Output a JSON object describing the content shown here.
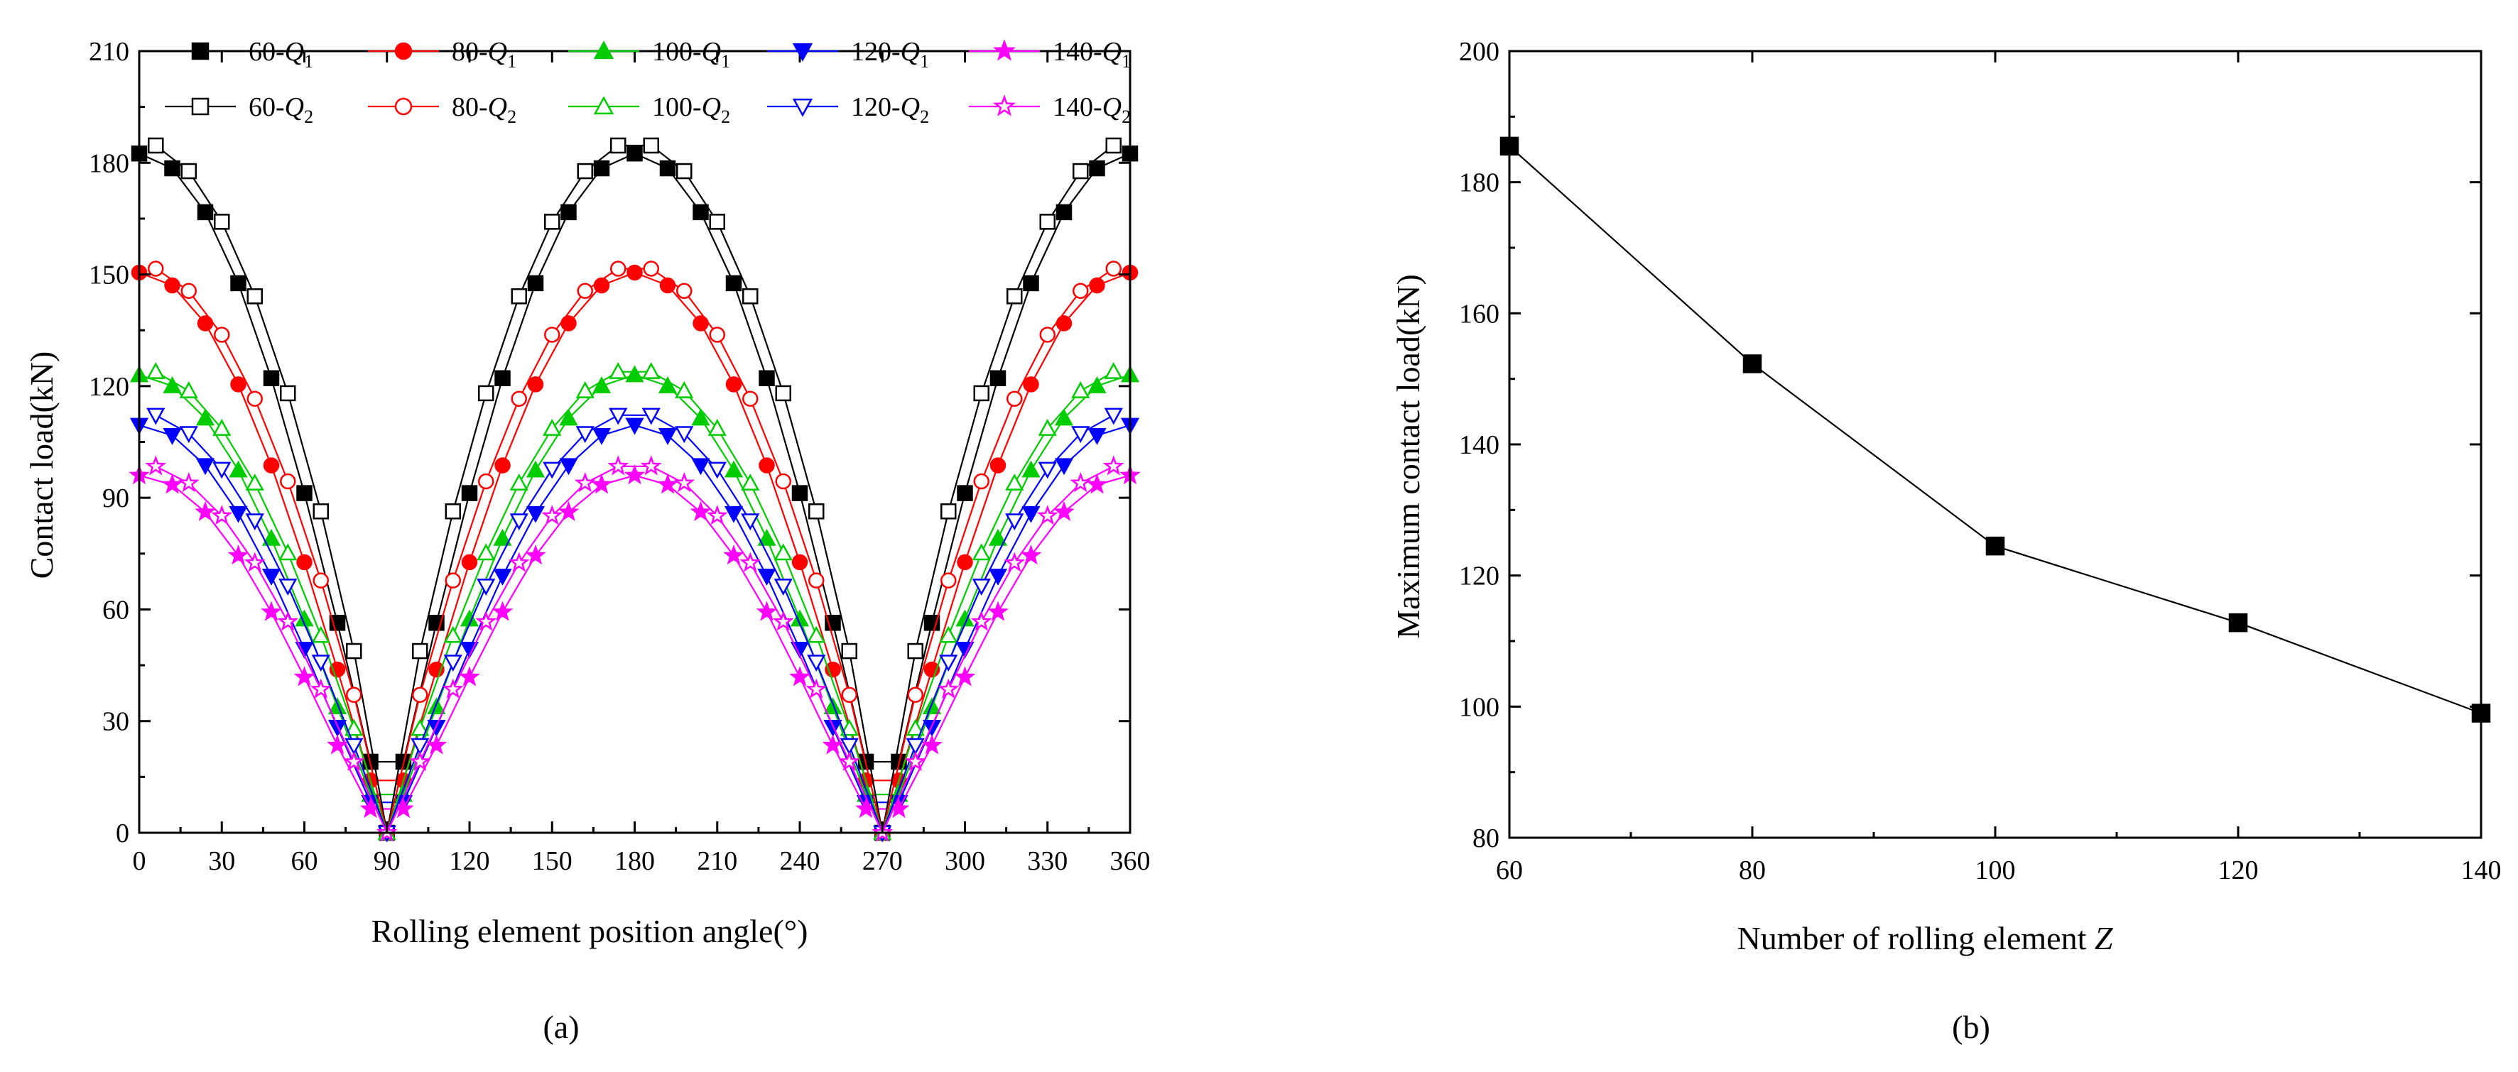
{
  "figure": {
    "panel_a_label": "(a)",
    "panel_b_label": "(b)"
  },
  "chart_data": [
    {
      "type": "line",
      "panel": "a",
      "xlabel": "Rolling element position angle(°)",
      "ylabel": "Contact load(kN)",
      "xlim": [
        0,
        360
      ],
      "ylim": [
        0,
        210
      ],
      "xticks": [
        "0",
        "30",
        "60",
        "90",
        "120",
        "150",
        "180",
        "210",
        "240",
        "270",
        "300",
        "330",
        "360"
      ],
      "yticks": [
        "0",
        "30",
        "60",
        "90",
        "120",
        "150",
        "180",
        "210"
      ],
      "grid": false,
      "legend_position": "top",
      "series": [
        {
          "name": "60-Q1",
          "label": {
            "pre": "60-",
            "var": "Q",
            "sub": "1"
          },
          "color": "#000000",
          "marker": "square",
          "filled": true,
          "peak": 182.5,
          "a": 1.0,
          "group": 1
        },
        {
          "name": "80-Q1",
          "label": {
            "pre": "80-",
            "var": "Q",
            "sub": "1"
          },
          "color": "#ff0000",
          "marker": "circle",
          "filled": true,
          "peak": 150.5,
          "a": 1.05,
          "group": 1
        },
        {
          "name": "100-Q1",
          "label": {
            "pre": "100-",
            "var": "Q",
            "sub": "1"
          },
          "color": "#00cc00",
          "marker": "triangle-up",
          "filled": true,
          "peak": 123.0,
          "a": 1.1,
          "group": 1
        },
        {
          "name": "120-Q1",
          "label": {
            "pre": "120-",
            "var": "Q",
            "sub": "1"
          },
          "color": "#0000ff",
          "marker": "triangle-down",
          "filled": true,
          "peak": 109.5,
          "a": 1.15,
          "group": 1
        },
        {
          "name": "140-Q1",
          "label": {
            "pre": "140-",
            "var": "Q",
            "sub": "1"
          },
          "color": "#ff00ff",
          "marker": "star",
          "filled": true,
          "peak": 96.0,
          "a": 1.2,
          "group": 1
        },
        {
          "name": "60-Q2",
          "label": {
            "pre": "60-",
            "var": "Q",
            "sub": "2"
          },
          "color": "#000000",
          "marker": "square",
          "filled": false,
          "peak": 185.5,
          "a": 0.85,
          "group": 2
        },
        {
          "name": "80-Q2",
          "label": {
            "pre": "80-",
            "var": "Q",
            "sub": "2"
          },
          "color": "#ff0000",
          "marker": "circle",
          "filled": false,
          "peak": 152.3,
          "a": 0.9,
          "group": 2
        },
        {
          "name": "100-Q2",
          "label": {
            "pre": "100-",
            "var": "Q",
            "sub": "2"
          },
          "color": "#00cc00",
          "marker": "triangle-up",
          "filled": false,
          "peak": 124.5,
          "a": 0.95,
          "group": 2
        },
        {
          "name": "120-Q2",
          "label": {
            "pre": "120-",
            "var": "Q",
            "sub": "2"
          },
          "color": "#0000ff",
          "marker": "triangle-down",
          "filled": false,
          "peak": 112.8,
          "a": 1.0,
          "group": 2
        },
        {
          "name": "140-Q2",
          "label": {
            "pre": "140-",
            "var": "Q",
            "sub": "2"
          },
          "color": "#ff00ff",
          "marker": "star",
          "filled": false,
          "peak": 99.0,
          "a": 1.05,
          "group": 2
        }
      ]
    },
    {
      "type": "line",
      "panel": "b",
      "xlabel": "Number of rolling element Z",
      "ylabel": "Maximum contact load(kN)",
      "xlim": [
        60,
        140
      ],
      "ylim": [
        80,
        200
      ],
      "xticks": [
        "60",
        "80",
        "100",
        "120",
        "140"
      ],
      "yticks": [
        "80",
        "100",
        "120",
        "140",
        "160",
        "180",
        "200"
      ],
      "grid": false,
      "x": [
        60,
        80,
        100,
        120,
        140
      ],
      "values": [
        185.5,
        152.3,
        124.5,
        112.8,
        99.0
      ],
      "marker": "square",
      "color": "#000000"
    }
  ]
}
